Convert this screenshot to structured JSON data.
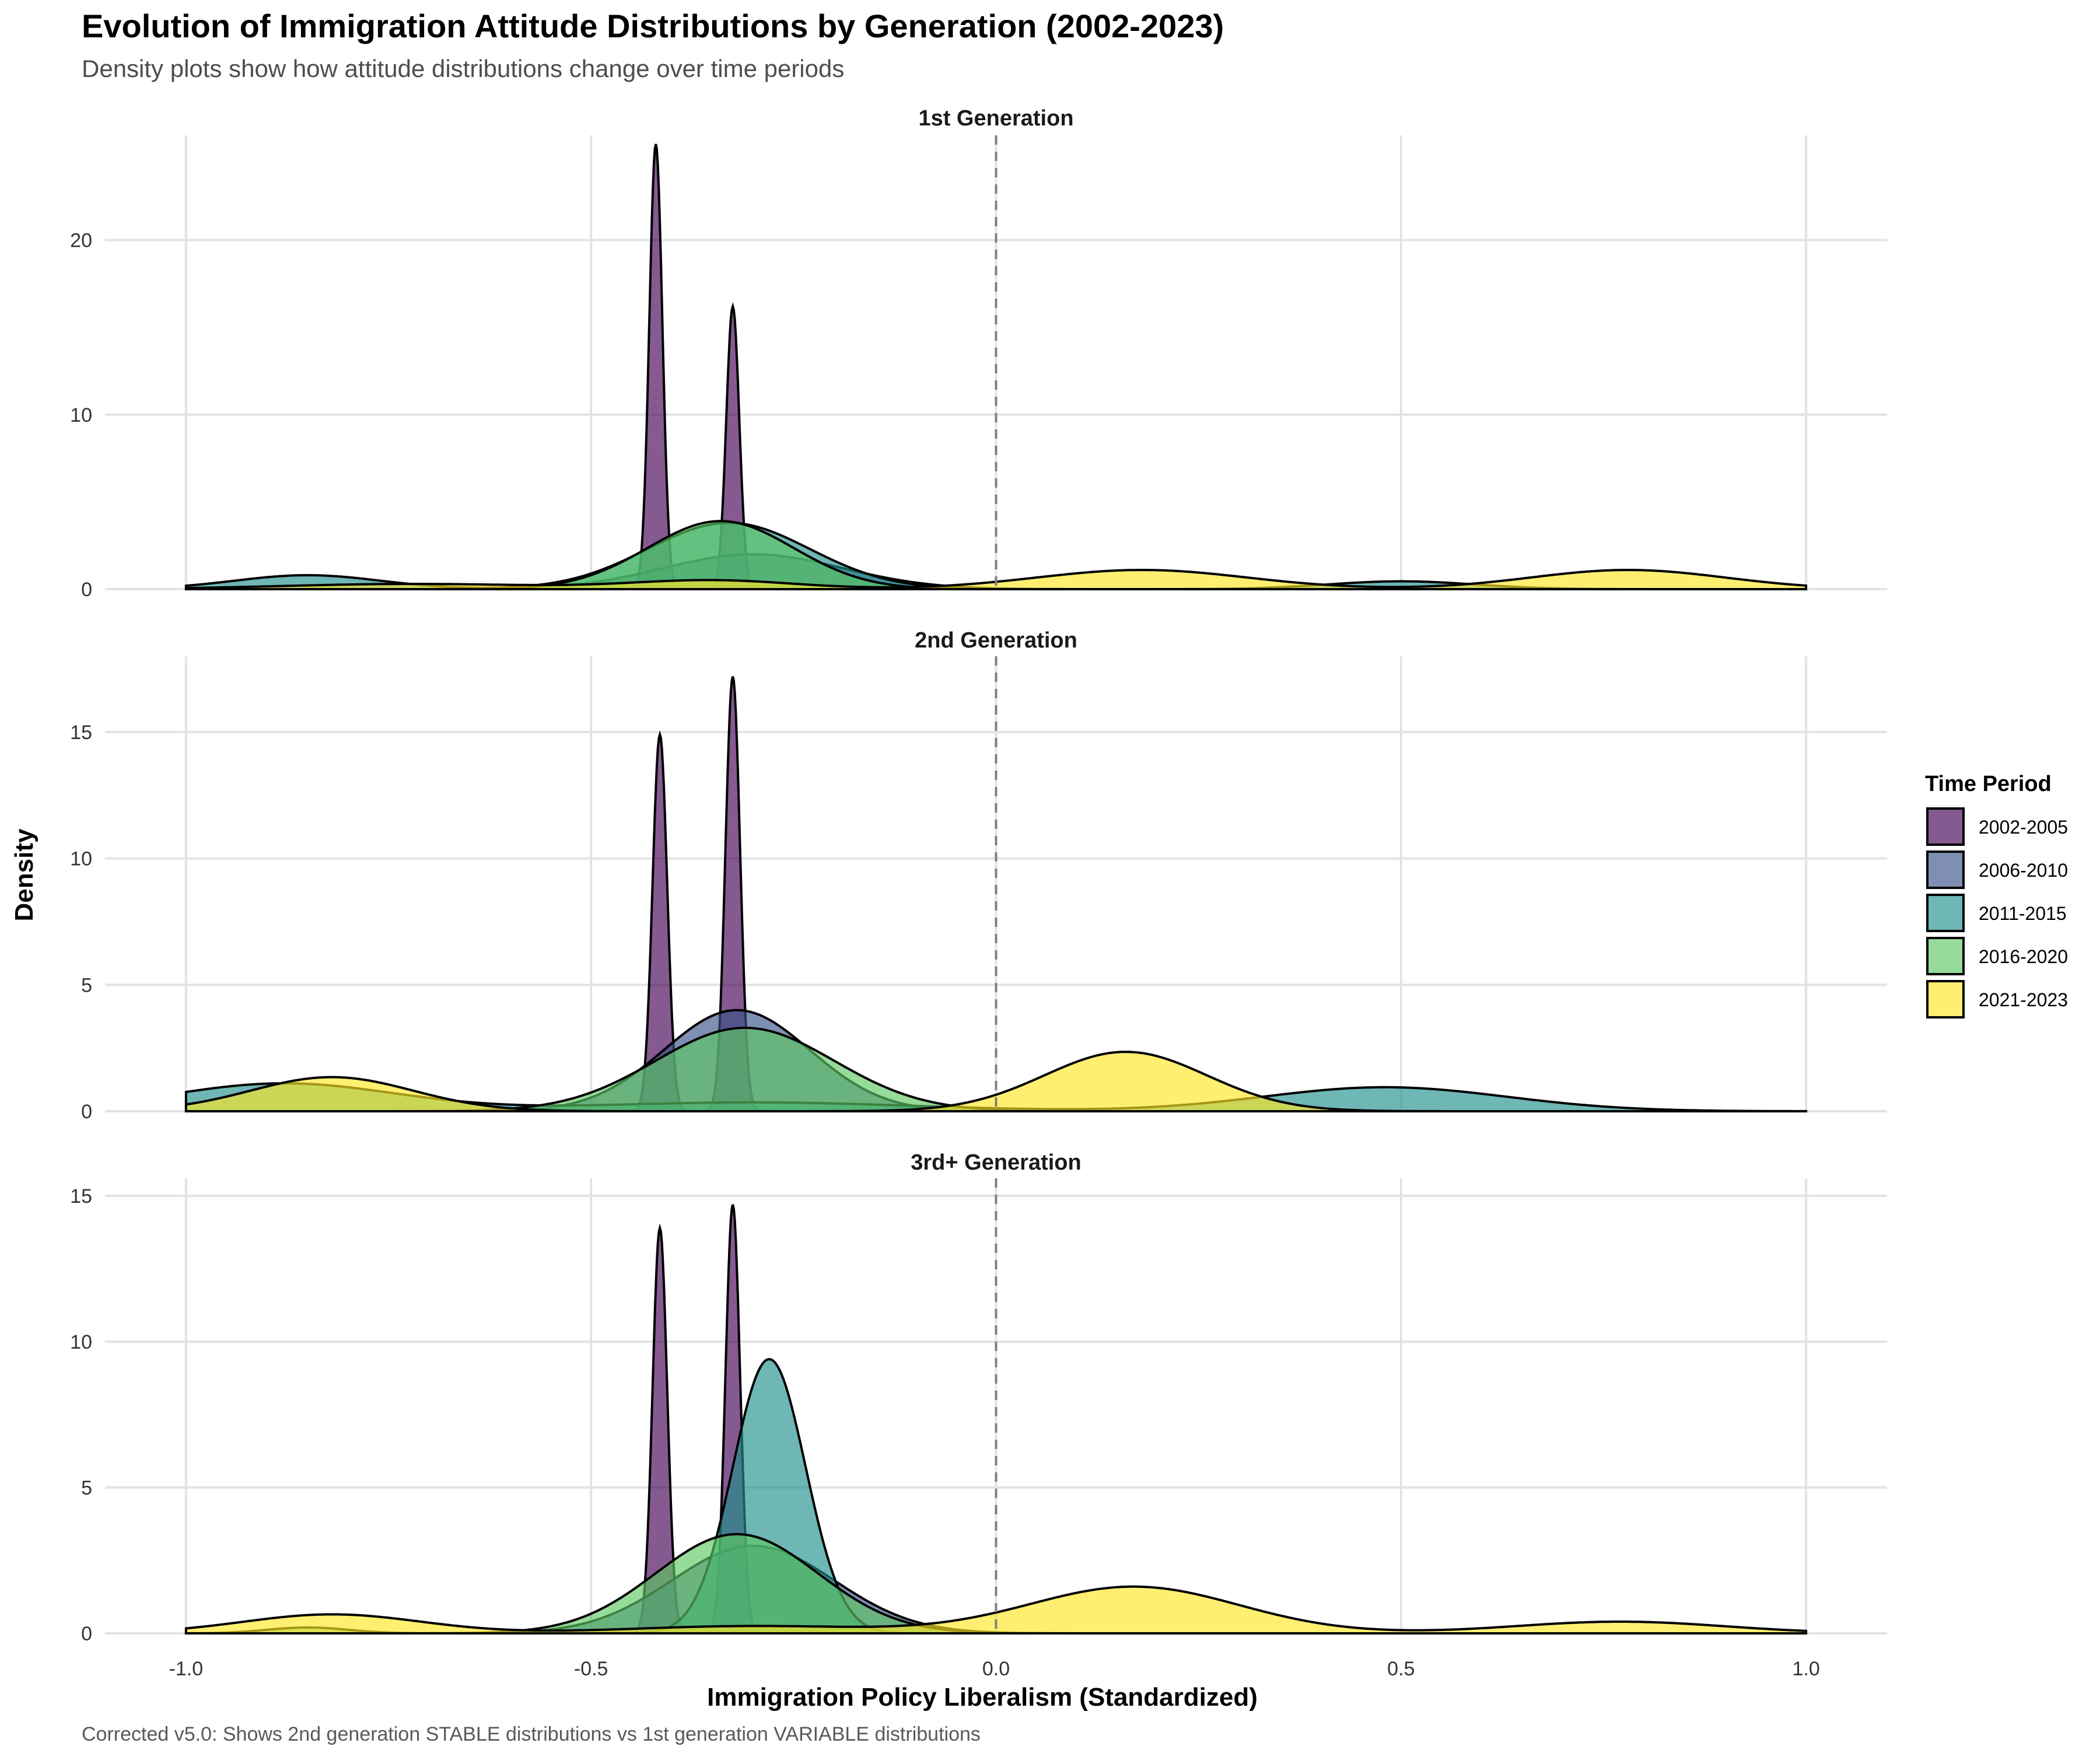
{
  "chart_data": {
    "type": "area",
    "title": "Evolution of Immigration Attitude Distributions by Generation (2002-2023)",
    "subtitle": "Density plots show how attitude distributions change over time periods",
    "caption": "Corrected v5.0: Shows 2nd generation STABLE distributions vs 1st generation VARIABLE distributions",
    "xlabel": "Immigration Policy Liberalism (Standardized)",
    "ylabel": "Density",
    "xlim": [
      -1.1,
      1.1
    ],
    "x_ticks": [
      -1.0,
      -0.5,
      0.0,
      0.5,
      1.0
    ],
    "x_tick_labels": [
      "-1.0",
      "-0.5",
      "0.0",
      "0.5",
      "1.0"
    ],
    "reference_line": {
      "x": 0,
      "style": "dashed"
    },
    "grid": true,
    "legend": {
      "title": "Time Period",
      "placement": "right",
      "entries": [
        {
          "label": "2002-2005",
          "color": "#440154"
        },
        {
          "label": "2006-2010",
          "color": "#3B528B"
        },
        {
          "label": "2011-2015",
          "color": "#21908C"
        },
        {
          "label": "2016-2020",
          "color": "#5DC863"
        },
        {
          "label": "2021-2023",
          "color": "#FDE725"
        }
      ]
    },
    "panels": [
      {
        "strip": "1st Generation",
        "ylim": [
          0,
          26
        ],
        "y_ticks": [
          0,
          10,
          20
        ],
        "series": [
          {
            "period": "2002-2005",
            "components": [
              {
                "mu": -0.42,
                "sigma": 0.008,
                "peak": 25.5
              },
              {
                "mu": -0.325,
                "sigma": 0.008,
                "peak": 16.2
              }
            ]
          },
          {
            "period": "2006-2010",
            "components": [
              {
                "mu": -0.3,
                "sigma": 0.11,
                "peak": 2.0
              }
            ]
          },
          {
            "period": "2011-2015",
            "components": [
              {
                "mu": -0.85,
                "sigma": 0.09,
                "peak": 0.8
              },
              {
                "mu": -0.33,
                "sigma": 0.1,
                "peak": 3.8
              },
              {
                "mu": 0.5,
                "sigma": 0.09,
                "peak": 0.45
              }
            ]
          },
          {
            "period": "2016-2020",
            "components": [
              {
                "mu": -0.34,
                "sigma": 0.09,
                "peak": 3.9
              }
            ]
          },
          {
            "period": "2021-2023",
            "components": [
              {
                "mu": -0.72,
                "sigma": 0.16,
                "peak": 0.3
              },
              {
                "mu": -0.35,
                "sigma": 0.1,
                "peak": 0.5
              },
              {
                "mu": 0.18,
                "sigma": 0.13,
                "peak": 1.1
              },
              {
                "mu": 0.78,
                "sigma": 0.12,
                "peak": 1.1
              }
            ]
          }
        ]
      },
      {
        "strip": "2nd Generation",
        "ylim": [
          0,
          18
        ],
        "y_ticks": [
          0,
          5,
          10,
          15
        ],
        "series": [
          {
            "period": "2002-2005",
            "components": [
              {
                "mu": -0.415,
                "sigma": 0.009,
                "peak": 14.9
              },
              {
                "mu": -0.325,
                "sigma": 0.009,
                "peak": 17.2
              }
            ]
          },
          {
            "period": "2006-2010",
            "components": [
              {
                "mu": -0.32,
                "sigma": 0.09,
                "peak": 4.0
              }
            ]
          },
          {
            "period": "2011-2015",
            "components": [
              {
                "mu": -0.88,
                "sigma": 0.14,
                "peak": 1.1
              },
              {
                "mu": -0.3,
                "sigma": 0.2,
                "peak": 0.35
              },
              {
                "mu": 0.48,
                "sigma": 0.15,
                "peak": 0.95
              }
            ]
          },
          {
            "period": "2016-2020",
            "components": [
              {
                "mu": -0.31,
                "sigma": 0.11,
                "peak": 3.3
              }
            ]
          },
          {
            "period": "2021-2023",
            "components": [
              {
                "mu": -0.82,
                "sigma": 0.1,
                "peak": 1.35
              },
              {
                "mu": 0.16,
                "sigma": 0.1,
                "peak": 2.35
              }
            ]
          }
        ]
      },
      {
        "strip": "3rd+ Generation",
        "ylim": [
          0,
          15.6
        ],
        "y_ticks": [
          0,
          5,
          10,
          15
        ],
        "series": [
          {
            "period": "2002-2005",
            "components": [
              {
                "mu": -0.415,
                "sigma": 0.009,
                "peak": 13.9
              },
              {
                "mu": -0.325,
                "sigma": 0.009,
                "peak": 14.7
              }
            ]
          },
          {
            "period": "2006-2010",
            "components": [
              {
                "mu": -0.3,
                "sigma": 0.1,
                "peak": 3.0
              }
            ]
          },
          {
            "period": "2011-2015",
            "components": [
              {
                "mu": -0.28,
                "sigma": 0.045,
                "peak": 9.4
              }
            ]
          },
          {
            "period": "2016-2020",
            "components": [
              {
                "mu": -0.32,
                "sigma": 0.1,
                "peak": 3.4
              },
              {
                "mu": -0.85,
                "sigma": 0.05,
                "peak": 0.2
              }
            ]
          },
          {
            "period": "2021-2023",
            "components": [
              {
                "mu": -0.82,
                "sigma": 0.11,
                "peak": 0.65
              },
              {
                "mu": -0.3,
                "sigma": 0.15,
                "peak": 0.25
              },
              {
                "mu": 0.17,
                "sigma": 0.13,
                "peak": 1.6
              },
              {
                "mu": 0.77,
                "sigma": 0.13,
                "peak": 0.4
              }
            ]
          }
        ]
      }
    ]
  }
}
